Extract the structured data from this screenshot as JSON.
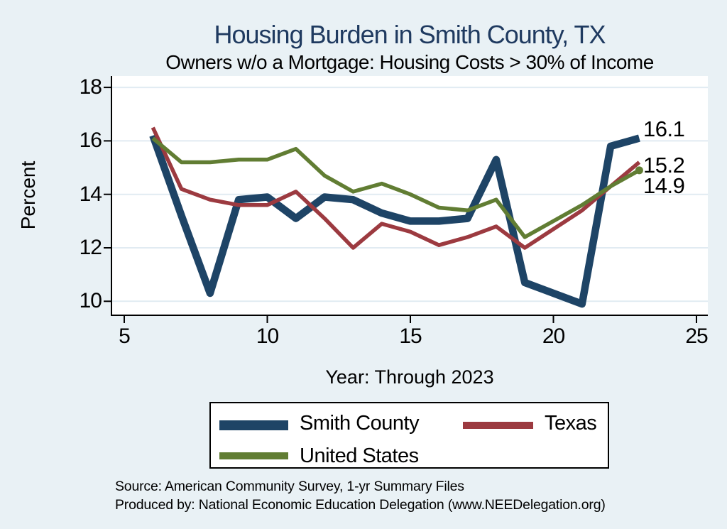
{
  "page": {
    "background": "#e9f1f5",
    "title_color": "#1f3a60"
  },
  "chart_data": {
    "type": "line",
    "title": "Housing Burden in Smith County, TX",
    "subtitle": "Owners w/o a Mortgage: Housing Costs > 30% of Income",
    "xlabel": "Year: Through 2023",
    "ylabel": "Percent",
    "xlim": [
      4.5,
      25.4
    ],
    "ylim": [
      9.5,
      18.4
    ],
    "x_ticks": [
      "5",
      "10",
      "15",
      "20",
      "25"
    ],
    "x_tick_values": [
      5,
      10,
      15,
      20,
      25
    ],
    "y_ticks": [
      "10",
      "12",
      "14",
      "16",
      "18"
    ],
    "y_tick_values": [
      10,
      12,
      14,
      16,
      18
    ],
    "grid": true,
    "legend_position": "bottom",
    "series": [
      {
        "name": "Smith County",
        "color": "#1e4466",
        "line_width": 10.5,
        "end_dot": false,
        "points": [
          [
            6,
            16.2
          ],
          [
            7,
            13.2
          ],
          [
            8,
            10.3
          ],
          [
            9,
            13.8
          ],
          [
            10,
            13.9
          ],
          [
            11,
            13.1
          ],
          [
            12,
            13.9
          ],
          [
            13,
            13.8
          ],
          [
            14,
            13.3
          ],
          [
            15,
            13.0
          ],
          [
            16,
            13.0
          ],
          [
            17,
            13.1
          ],
          [
            18,
            15.3
          ],
          [
            19,
            10.7
          ],
          [
            21,
            9.9
          ],
          [
            22,
            15.8
          ],
          [
            23,
            16.1
          ]
        ]
      },
      {
        "name": "Texas",
        "color": "#9c3a40",
        "line_width": 5.5,
        "end_dot": false,
        "points": [
          [
            6,
            16.5
          ],
          [
            7,
            14.2
          ],
          [
            8,
            13.8
          ],
          [
            9,
            13.6
          ],
          [
            10,
            13.6
          ],
          [
            11,
            14.1
          ],
          [
            12,
            13.1
          ],
          [
            13,
            12.0
          ],
          [
            14,
            12.9
          ],
          [
            15,
            12.6
          ],
          [
            16,
            12.1
          ],
          [
            17,
            12.4
          ],
          [
            18,
            12.8
          ],
          [
            19,
            12.0
          ],
          [
            21,
            13.4
          ],
          [
            22,
            14.3
          ],
          [
            23,
            15.2
          ]
        ]
      },
      {
        "name": "United States",
        "color": "#617d33",
        "line_width": 5.5,
        "end_dot": true,
        "points": [
          [
            6,
            16.1
          ],
          [
            7,
            15.2
          ],
          [
            8,
            15.2
          ],
          [
            9,
            15.3
          ],
          [
            10,
            15.3
          ],
          [
            11,
            15.7
          ],
          [
            12,
            14.7
          ],
          [
            13,
            14.1
          ],
          [
            14,
            14.4
          ],
          [
            15,
            14.0
          ],
          [
            16,
            13.5
          ],
          [
            17,
            13.4
          ],
          [
            18,
            13.8
          ],
          [
            19,
            12.4
          ],
          [
            21,
            13.6
          ],
          [
            22,
            14.3
          ],
          [
            23,
            14.9
          ]
        ]
      }
    ],
    "end_labels": [
      "16.1",
      "15.2",
      "14.9"
    ]
  },
  "footer": {
    "source": "Source: American Community Survey, 1-yr Summary Files",
    "produced_by": "Produced by: National Economic Education Delegation (www.NEEDelegation.org)"
  }
}
